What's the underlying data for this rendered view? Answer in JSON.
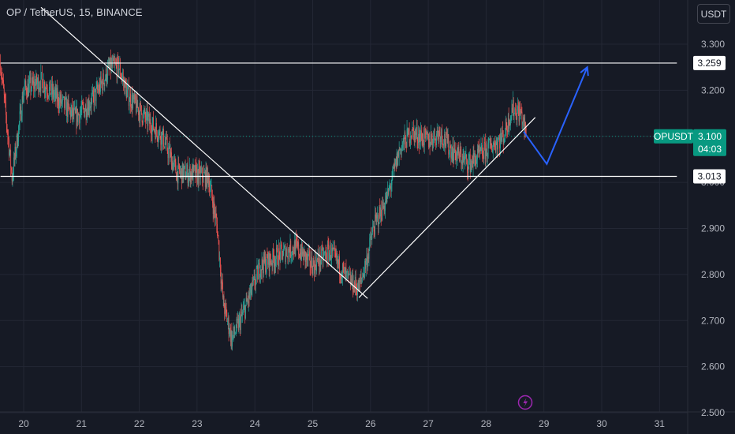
{
  "header": {
    "title": "OP / TetherUS, 15, BINANCE",
    "currency": "USDT"
  },
  "badges": {
    "symbol": "OPUSDT",
    "price": "3.100",
    "countdown": "04:03",
    "level_high": "3.259",
    "level_low": "3.013"
  },
  "colors": {
    "background": "#161a25",
    "up": "#26a69a",
    "down": "#ef5350",
    "projection": "#2962ff",
    "lines": "#ffffff",
    "badge": "#089981",
    "lightning": "#9c27b0"
  },
  "chart_data": {
    "type": "candlestick",
    "title": "OP / TetherUS, 15, BINANCE",
    "xlabel": "",
    "ylabel": "",
    "ylim": [
      2.5,
      3.35
    ],
    "y_ticks": [
      2.5,
      2.6,
      2.7,
      2.8,
      2.9,
      3.0,
      3.1,
      3.2,
      3.3
    ],
    "y_tick_labels": [
      "2.500",
      "2.600",
      "2.700",
      "2.800",
      "2.900",
      "3.000",
      "3.100",
      "3.200",
      "3.300"
    ],
    "x_ticks": [
      {
        "label": "20",
        "day": 20
      },
      {
        "label": "21",
        "day": 21
      },
      {
        "label": "22",
        "day": 22
      },
      {
        "label": "23",
        "day": 23
      },
      {
        "label": "24",
        "day": 24
      },
      {
        "label": "25",
        "day": 25
      },
      {
        "label": "26",
        "day": 26
      },
      {
        "label": "27",
        "day": 27
      },
      {
        "label": "28",
        "day": 28
      },
      {
        "label": "29",
        "day": 29
      },
      {
        "label": "30",
        "day": 30
      },
      {
        "label": "31",
        "day": 31
      }
    ],
    "xlim": [
      19.6,
      31.3
    ],
    "current_price": 3.1,
    "price_path": [
      [
        19.6,
        3.26
      ],
      [
        19.8,
        3.01
      ],
      [
        20.0,
        3.2
      ],
      [
        20.3,
        3.22
      ],
      [
        20.6,
        3.18
      ],
      [
        20.9,
        3.14
      ],
      [
        21.2,
        3.18
      ],
      [
        21.5,
        3.25
      ],
      [
        21.65,
        3.25
      ],
      [
        21.8,
        3.19
      ],
      [
        22.1,
        3.14
      ],
      [
        22.4,
        3.1
      ],
      [
        22.65,
        3.02
      ],
      [
        22.9,
        3.02
      ],
      [
        23.2,
        3.01
      ],
      [
        23.35,
        2.9
      ],
      [
        23.45,
        2.74
      ],
      [
        23.6,
        2.66
      ],
      [
        23.75,
        2.7
      ],
      [
        23.9,
        2.75
      ],
      [
        24.1,
        2.82
      ],
      [
        24.4,
        2.84
      ],
      [
        24.7,
        2.86
      ],
      [
        25.0,
        2.82
      ],
      [
        25.3,
        2.85
      ],
      [
        25.6,
        2.79
      ],
      [
        25.8,
        2.77
      ],
      [
        25.95,
        2.84
      ],
      [
        26.05,
        2.9
      ],
      [
        26.3,
        2.97
      ],
      [
        26.5,
        3.07
      ],
      [
        26.7,
        3.11
      ],
      [
        27.0,
        3.09
      ],
      [
        27.2,
        3.11
      ],
      [
        27.4,
        3.07
      ],
      [
        27.7,
        3.04
      ],
      [
        28.0,
        3.07
      ],
      [
        28.3,
        3.1
      ],
      [
        28.45,
        3.16
      ],
      [
        28.6,
        3.15
      ],
      [
        28.7,
        3.1
      ]
    ],
    "series": [
      {
        "name": "",
        "kind": "resistance",
        "points": [
          [
            19.6,
            3.259
          ],
          [
            31.3,
            3.259
          ]
        ]
      },
      {
        "name": "",
        "kind": "support",
        "points": [
          [
            19.6,
            3.013
          ],
          [
            31.3,
            3.013
          ]
        ]
      },
      {
        "name": "",
        "kind": "trendline-down",
        "points": [
          [
            20.3,
            3.38
          ],
          [
            25.95,
            2.748
          ]
        ]
      },
      {
        "name": "",
        "kind": "trendline-up",
        "points": [
          [
            25.8,
            2.75
          ],
          [
            28.85,
            3.141
          ]
        ]
      },
      {
        "name": "",
        "kind": "projection",
        "points": [
          [
            28.65,
            3.11
          ],
          [
            29.05,
            3.04
          ],
          [
            29.75,
            3.25
          ]
        ]
      }
    ]
  }
}
